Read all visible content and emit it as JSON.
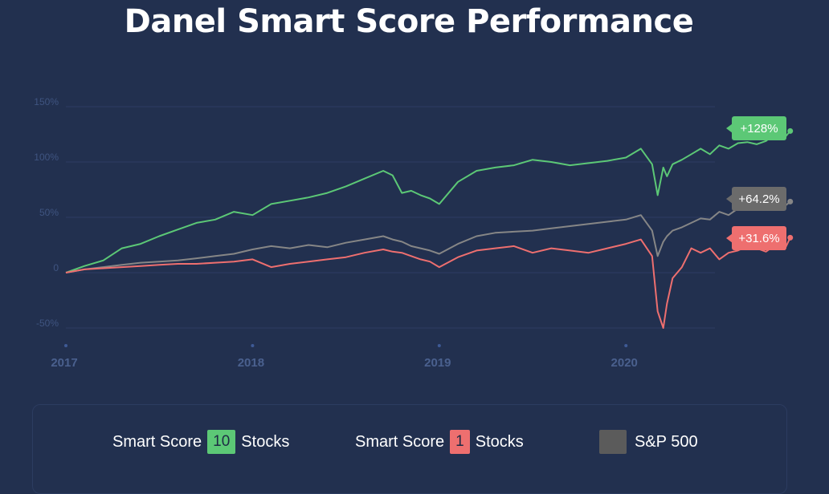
{
  "title": "Danel Smart Score Performance",
  "chart_data": {
    "type": "line",
    "title": "Danel Smart Score Performance",
    "x_ticks": [
      "2017",
      "2018",
      "2019",
      "2020"
    ],
    "y_ticks": [
      "150%",
      "100%",
      "50%",
      "0",
      "-50%"
    ],
    "ylim": [
      -50,
      150
    ],
    "xlim": [
      2017.0,
      2020.95
    ],
    "x": [
      2017.0,
      2017.1,
      2017.2,
      2017.3,
      2017.4,
      2017.5,
      2017.6,
      2017.7,
      2017.8,
      2017.9,
      2018.0,
      2018.1,
      2018.2,
      2018.3,
      2018.4,
      2018.5,
      2018.6,
      2018.7,
      2018.75,
      2018.8,
      2018.85,
      2018.9,
      2018.95,
      2019.0,
      2019.1,
      2019.2,
      2019.3,
      2019.4,
      2019.5,
      2019.6,
      2019.7,
      2019.8,
      2019.9,
      2020.0,
      2020.08,
      2020.14,
      2020.17,
      2020.2,
      2020.22,
      2020.25,
      2020.3,
      2020.35,
      2020.4,
      2020.45,
      2020.5,
      2020.55,
      2020.6,
      2020.65,
      2020.7,
      2020.75,
      2020.8,
      2020.85,
      2020.88
    ],
    "series": [
      {
        "name": "Smart Score 10 Stocks",
        "color": "#5cc876",
        "end_label": "+128%",
        "values": [
          0,
          6,
          11,
          22,
          26,
          33,
          39,
          45,
          48,
          55,
          52,
          62,
          65,
          68,
          72,
          78,
          85,
          92,
          88,
          72,
          74,
          70,
          67,
          62,
          82,
          92,
          95,
          97,
          102,
          100,
          97,
          99,
          101,
          104,
          112,
          98,
          70,
          95,
          87,
          98,
          102,
          107,
          112,
          107,
          115,
          112,
          117,
          118,
          116,
          119,
          126,
          122,
          128
        ]
      },
      {
        "name": "S&P 500",
        "color": "#868686",
        "end_label": "+64.2%",
        "values": [
          0,
          3,
          5,
          7,
          9,
          10,
          11,
          13,
          15,
          17,
          21,
          24,
          22,
          25,
          23,
          27,
          30,
          33,
          30,
          28,
          24,
          22,
          20,
          17,
          26,
          33,
          36,
          37,
          38,
          40,
          42,
          44,
          46,
          48,
          52,
          38,
          15,
          28,
          33,
          38,
          41,
          45,
          49,
          48,
          55,
          52,
          58,
          60,
          58,
          63,
          61,
          60,
          64.2
        ]
      },
      {
        "name": "Smart Score 1 Stocks",
        "color": "#ee6f6f",
        "end_label": "+31.6%",
        "values": [
          0,
          3,
          4,
          5,
          6,
          7,
          8,
          8,
          9,
          10,
          12,
          5,
          8,
          10,
          12,
          14,
          18,
          21,
          19,
          18,
          15,
          12,
          10,
          5,
          14,
          20,
          22,
          24,
          18,
          22,
          20,
          18,
          22,
          26,
          30,
          15,
          -35,
          -50,
          -28,
          -5,
          5,
          22,
          18,
          22,
          12,
          18,
          20,
          24,
          22,
          19,
          25,
          21,
          31.6
        ]
      }
    ],
    "legend": {
      "placement": "bottom",
      "items": [
        {
          "prefix": "Smart Score",
          "badge": "10",
          "suffix": "Stocks",
          "color": "#5cc876"
        },
        {
          "prefix": "Smart Score",
          "badge": "1",
          "suffix": "Stocks",
          "color": "#ee6f6f"
        },
        {
          "prefix": "",
          "badge": "",
          "suffix": "S&P 500",
          "color": "#5b5b5b"
        }
      ]
    },
    "grid": true
  },
  "colors": {
    "background": "#22304f",
    "grid": "#2d3d63",
    "tick_text": "#3f5480",
    "year_text": "#4a608e"
  }
}
